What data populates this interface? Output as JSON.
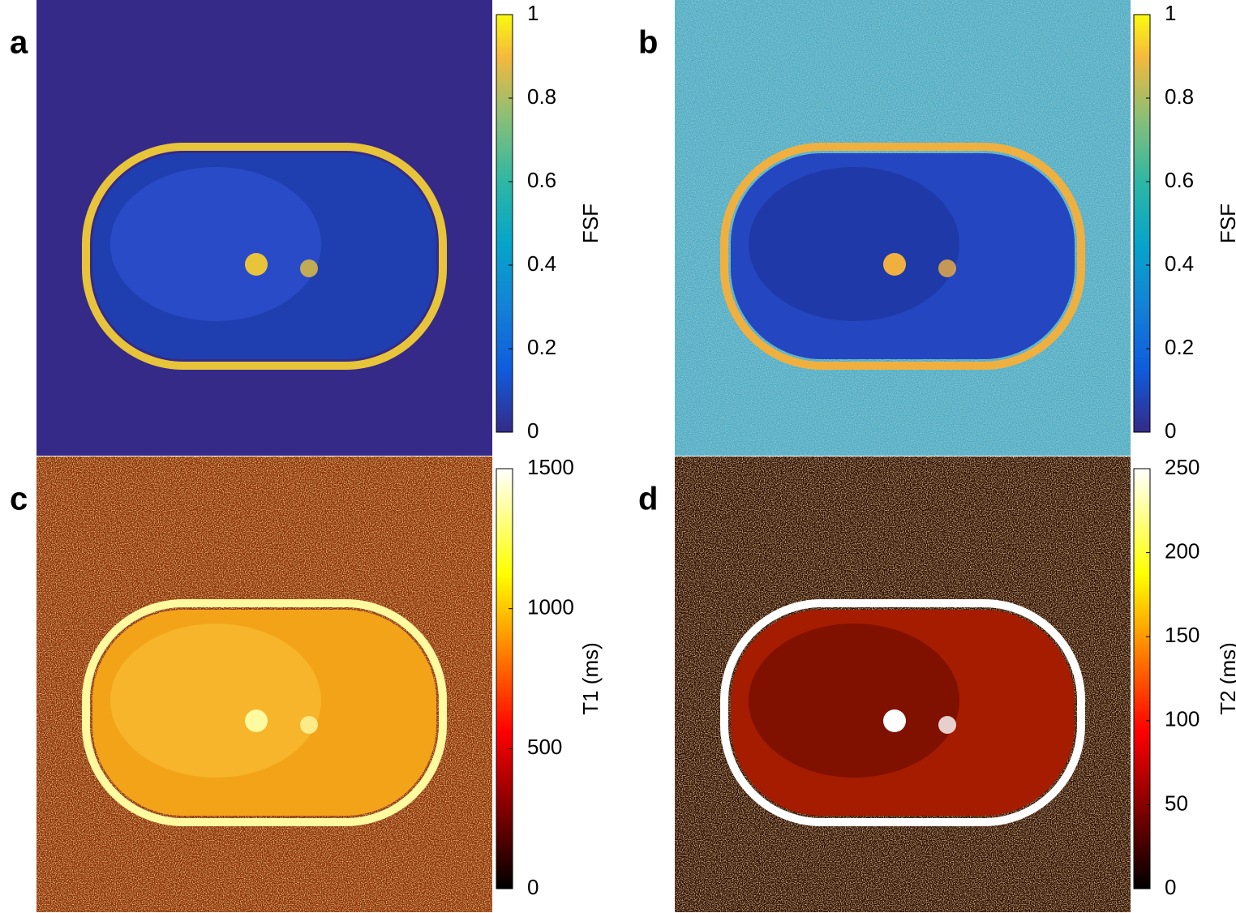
{
  "panels": [
    {
      "letter": "a",
      "colormap": "parula",
      "colorbar": {
        "label": "FSF",
        "lim": [
          0,
          1
        ],
        "ticks": [
          0,
          0.2,
          0.4,
          0.6,
          0.8,
          1
        ]
      }
    },
    {
      "letter": "b",
      "colormap": "parula",
      "colorbar": {
        "label": "FSF",
        "lim": [
          0,
          1
        ],
        "ticks": [
          0,
          0.2,
          0.4,
          0.6,
          0.8,
          1
        ]
      }
    },
    {
      "letter": "c",
      "colormap": "hot",
      "colorbar": {
        "label": "T1 (ms)",
        "lim": [
          0,
          1500
        ],
        "ticks": [
          0,
          500,
          1000,
          1500
        ]
      }
    },
    {
      "letter": "d",
      "colormap": "hot",
      "colorbar": {
        "label": "T2 (ms)",
        "lim": [
          0,
          250
        ],
        "ticks": [
          0,
          50,
          100,
          150,
          200,
          250
        ]
      }
    }
  ]
}
